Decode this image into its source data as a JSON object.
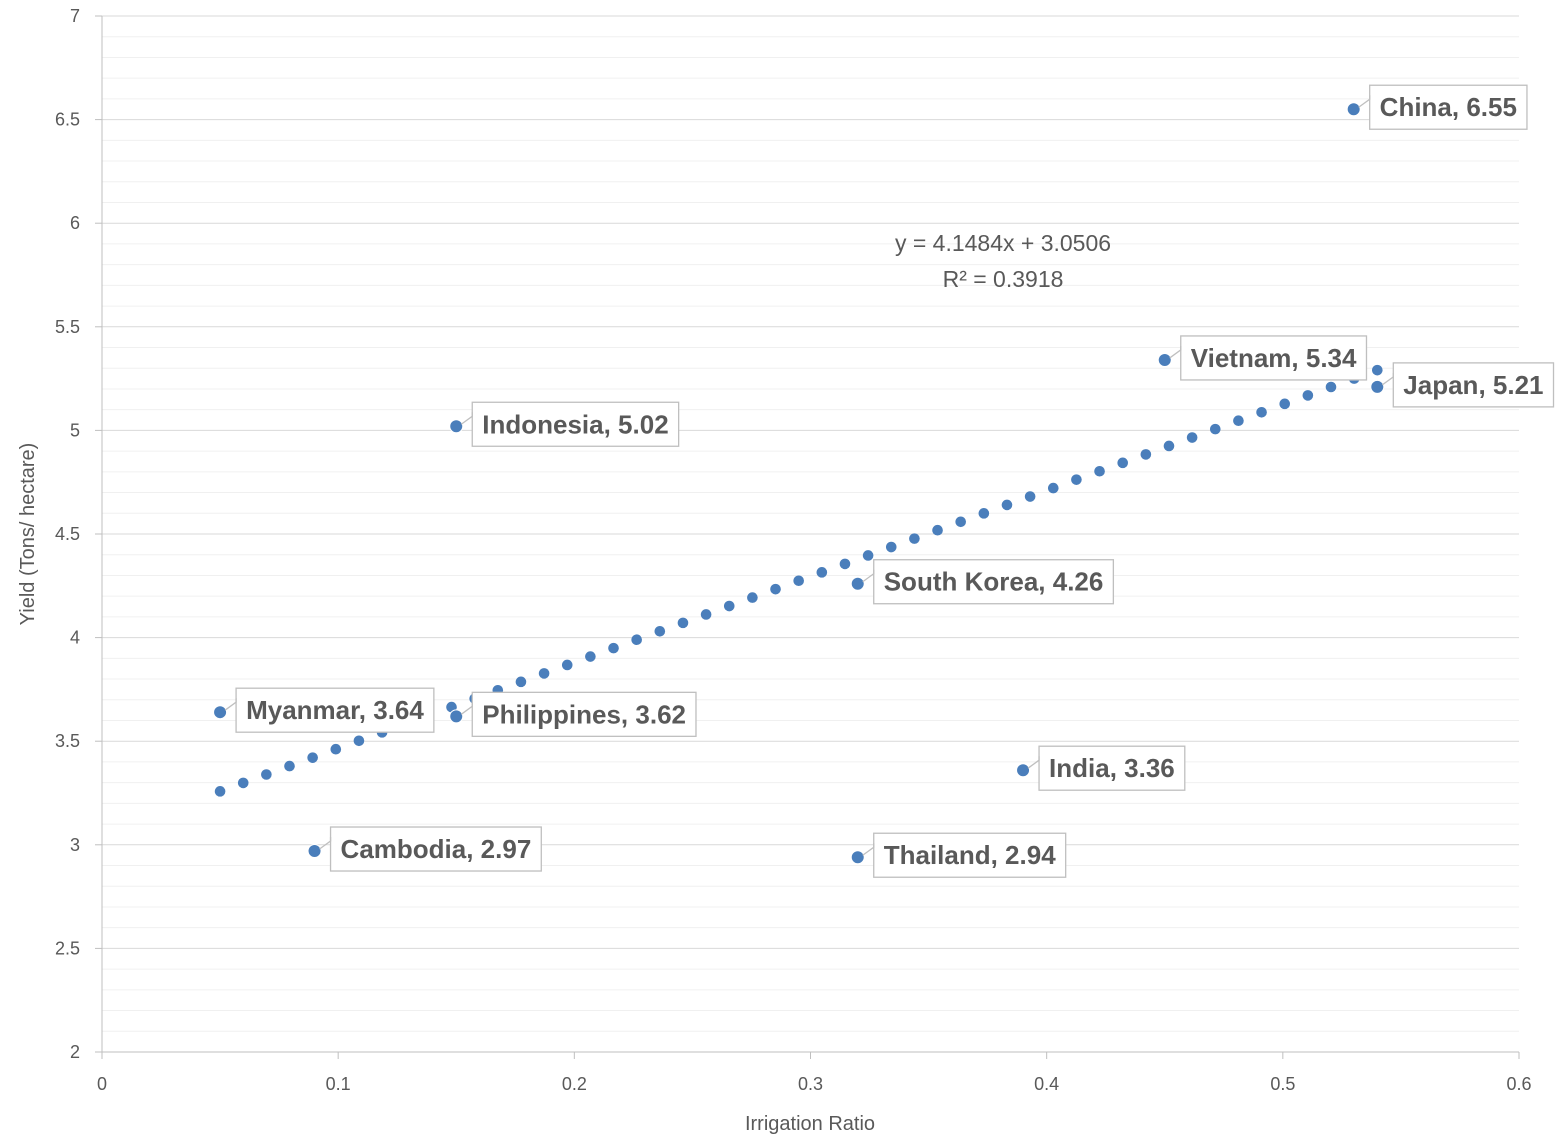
{
  "chart_data": {
    "type": "scatter",
    "xlabel": "Irrigation Ratio",
    "ylabel": "Yield (Tons/ hectare)",
    "xlim": [
      0,
      0.6
    ],
    "ylim": [
      2,
      7
    ],
    "x_ticks": [
      "0",
      "0.1",
      "0.2",
      "0.3",
      "0.4",
      "0.5",
      "0.6"
    ],
    "y_ticks": [
      "2",
      "2.5",
      "3",
      "3.5",
      "4",
      "4.5",
      "5",
      "5.5",
      "6",
      "6.5",
      "7"
    ],
    "grid": "horizontal major and minor",
    "marker_color": "#4A7EBB",
    "points": [
      {
        "label": "China, 6.55",
        "x": 0.53,
        "y": 6.55
      },
      {
        "label": "Vietnam, 5.34",
        "x": 0.45,
        "y": 5.34
      },
      {
        "label": "Japan, 5.21",
        "x": 0.54,
        "y": 5.21
      },
      {
        "label": "Indonesia, 5.02",
        "x": 0.15,
        "y": 5.02
      },
      {
        "label": "South Korea, 4.26",
        "x": 0.32,
        "y": 4.26
      },
      {
        "label": "Myanmar, 3.64",
        "x": 0.05,
        "y": 3.64
      },
      {
        "label": "Philippines, 3.62",
        "x": 0.15,
        "y": 3.62
      },
      {
        "label": "India, 3.36",
        "x": 0.39,
        "y": 3.36
      },
      {
        "label": "Cambodia, 2.97",
        "x": 0.09,
        "y": 2.97
      },
      {
        "label": "Thailand, 2.94",
        "x": 0.32,
        "y": 2.94
      }
    ],
    "trendline": {
      "type": "linear",
      "slope": 4.1484,
      "intercept": 3.0506,
      "x_range": [
        0.05,
        0.54
      ],
      "equation_text": "y = 4.1484x + 3.0506",
      "r2_text": "R² = 0.3918"
    }
  }
}
